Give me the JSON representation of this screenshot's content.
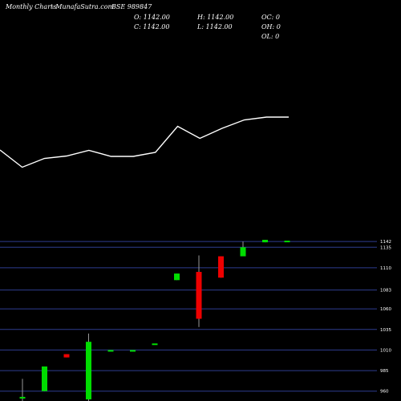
{
  "header": {
    "title": "Monthly Charts",
    "source": "- MunafaSutra.com",
    "symbol": "BSE 989847",
    "ohlc": {
      "o": "O: 1142.00",
      "c": "C: 1142.00",
      "h": "H: 1142.00",
      "l": "L: 1142.00",
      "oc": "OC: 0",
      "oh": "OH: 0",
      "ol": "OL: 0"
    }
  },
  "colors": {
    "background": "#000000",
    "up": "#00dd00",
    "down": "#ee0000",
    "line": "#ffffff",
    "grid": "#2e3d8f",
    "doji": "#00dd00"
  },
  "chart_data": {
    "type": "candlestick",
    "title": "Monthly Charts",
    "y_axis_labels": [
      "1142",
      "1135",
      "1110",
      "1083",
      "1060",
      "1035",
      "1010",
      "985",
      "960"
    ],
    "ylim": [
      948,
      1146
    ],
    "candles": [
      {
        "open": 951,
        "close": 953,
        "high": 975,
        "low": 948,
        "dir": "up"
      },
      {
        "open": 960,
        "close": 990,
        "high": 990,
        "low": 960,
        "dir": "up"
      },
      {
        "open": 1005,
        "close": 1001,
        "high": 1005,
        "low": 1001,
        "dir": "down"
      },
      {
        "open": 950,
        "close": 1020,
        "high": 1030,
        "low": 948,
        "dir": "up"
      },
      {
        "open": 1009,
        "close": 1009,
        "high": 1009,
        "low": 1009,
        "dir": "doji"
      },
      {
        "open": 1009,
        "close": 1009,
        "high": 1009,
        "low": 1009,
        "dir": "doji"
      },
      {
        "open": 1017,
        "close": 1017,
        "high": 1017,
        "low": 1017,
        "dir": "doji"
      },
      {
        "open": 1095,
        "close": 1103,
        "high": 1103,
        "low": 1095,
        "dir": "up"
      },
      {
        "open": 1105,
        "close": 1048,
        "high": 1125,
        "low": 1038,
        "dir": "down"
      },
      {
        "open": 1124,
        "close": 1098,
        "high": 1124,
        "low": 1098,
        "dir": "down"
      },
      {
        "open": 1124,
        "close": 1135,
        "high": 1142,
        "low": 1124,
        "dir": "up"
      },
      {
        "open": 1141,
        "close": 1144,
        "high": 1144,
        "low": 1141,
        "dir": "up"
      },
      {
        "open": 1142,
        "close": 1142,
        "high": 1142,
        "low": 1142,
        "dir": "doji"
      }
    ],
    "line_series": {
      "values": [
        0.46,
        0.03,
        0.25,
        0.31,
        0.45,
        0.3,
        0.3,
        0.4,
        1.05,
        0.75,
        1.0,
        1.21,
        1.28,
        1.28
      ],
      "ylim": [
        0,
        2
      ]
    }
  }
}
